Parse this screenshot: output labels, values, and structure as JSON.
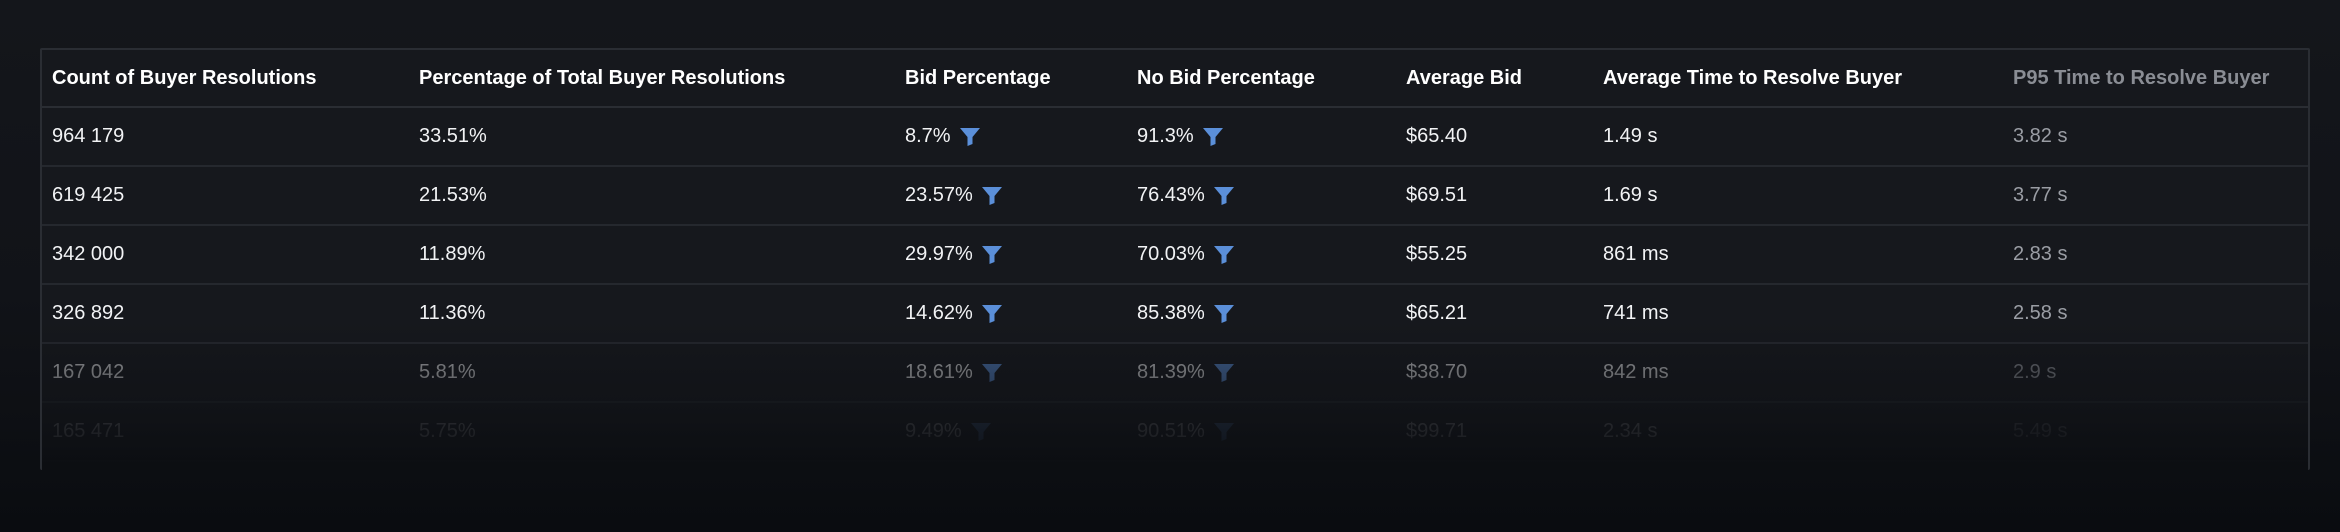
{
  "table": {
    "columns": [
      "Count of Buyer Resolutions",
      "Percentage of Total Buyer Resolutions",
      "Bid Percentage",
      "No Bid Percentage",
      "Average Bid",
      "Average Time to Resolve Buyer",
      "P95 Time to Resolve Buyer"
    ],
    "rows": [
      [
        "964 179",
        "33.51%",
        "8.7%",
        "91.3%",
        "$65.40",
        "1.49 s",
        "3.82 s"
      ],
      [
        "619 425",
        "21.53%",
        "23.57%",
        "76.43%",
        "$69.51",
        "1.69 s",
        "3.77 s"
      ],
      [
        "342 000",
        "11.89%",
        "29.97%",
        "70.03%",
        "$55.25",
        "861 ms",
        "2.83 s"
      ],
      [
        "326 892",
        "11.36%",
        "14.62%",
        "85.38%",
        "$65.21",
        "741 ms",
        "2.58 s"
      ],
      [
        "167 042",
        "5.81%",
        "18.61%",
        "81.39%",
        "$38.70",
        "842 ms",
        "2.9 s"
      ],
      [
        "165 471",
        "5.75%",
        "9.49%",
        "90.51%",
        "$99.71",
        "2.34 s",
        "5.49 s"
      ]
    ],
    "filter_icon": "filter-funnel-icon",
    "filter_icon_color": "#5b8fd9"
  }
}
